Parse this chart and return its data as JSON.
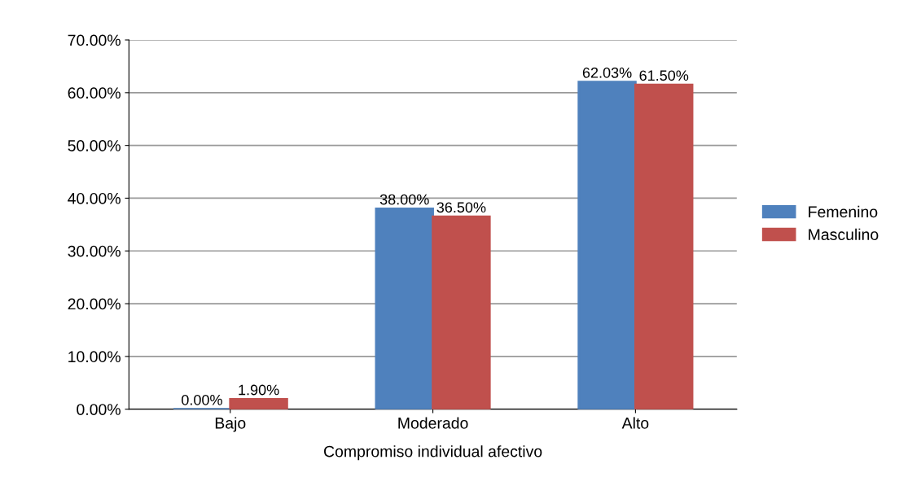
{
  "chart_data": {
    "type": "bar",
    "xlabel": "Compromiso individual afectivo",
    "categories": [
      "Bajo",
      "Moderado",
      "Alto"
    ],
    "series": [
      {
        "name": "Femenino",
        "color": "#4f81bd",
        "values": [
          0,
          38,
          62.03
        ],
        "value_labels": [
          "0.00%",
          "38.00%",
          "62.03%"
        ]
      },
      {
        "name": "Masculino",
        "color": "#c0504d",
        "values": [
          1.9,
          36.5,
          61.5
        ],
        "value_labels": [
          "1.90%",
          "36.50%",
          "61.50%"
        ]
      }
    ],
    "ylim": [
      0,
      70
    ],
    "yticks": [
      {
        "value": 0,
        "label": "0.00%"
      },
      {
        "value": 10,
        "label": "10.00%"
      },
      {
        "value": 20,
        "label": "20.00%"
      },
      {
        "value": 30,
        "label": "30.00%"
      },
      {
        "value": 40,
        "label": "40.00%"
      },
      {
        "value": 50,
        "label": "50.00%"
      },
      {
        "value": 60,
        "label": "60.00%"
      },
      {
        "value": 70,
        "label": "70.00%"
      }
    ],
    "grid": "y",
    "legend": "right"
  }
}
